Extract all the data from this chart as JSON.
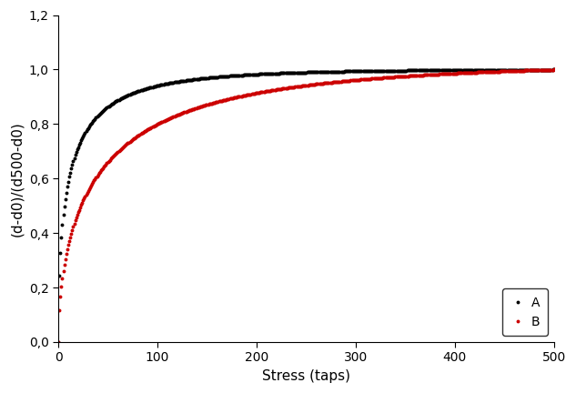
{
  "title": "",
  "xlabel": "Stress (taps)",
  "ylabel": "(d-d0)/(d500-d0)",
  "xlim": [
    0,
    500
  ],
  "ylim": [
    0,
    1.2
  ],
  "yticks": [
    0.0,
    0.2,
    0.4,
    0.6,
    0.8,
    1.0,
    1.2
  ],
  "ytick_labels": [
    "0,0",
    "0,2",
    "0,4",
    "0,6",
    "0,8",
    "1,0",
    "1,2"
  ],
  "xticks": [
    0,
    100,
    200,
    300,
    400,
    500
  ],
  "curve_A": {
    "color": "#000000",
    "label": "A",
    "k": 0.28,
    "n": 0.5
  },
  "curve_B": {
    "color": "#cc0000",
    "label": "B",
    "k": 0.12,
    "n": 0.55
  },
  "legend_loc": "lower right",
  "background_color": "#ffffff",
  "marker": "o",
  "markersize": 1.8,
  "linewidth": 0,
  "num_points": 500,
  "figure_width": 6.33,
  "figure_height": 4.32,
  "dpi": 100
}
